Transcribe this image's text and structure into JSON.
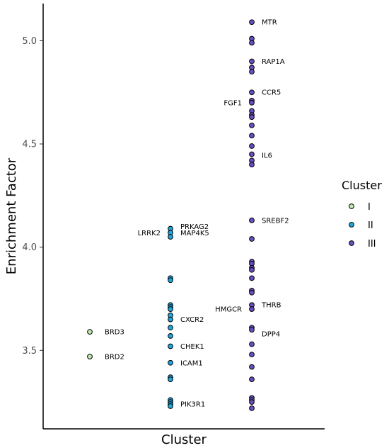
{
  "chart_data": {
    "type": "scatter",
    "xlabel": "Cluster",
    "ylabel": "Enrichment Factor",
    "ylim": [
      3.12,
      5.18
    ],
    "yticks": [
      "3.5",
      "4.0",
      "4.5",
      "5.0"
    ],
    "grid": false,
    "legend_position": "right",
    "legend": {
      "title": "Cluster",
      "entries": [
        {
          "label": "I",
          "color": "#c2e8b0"
        },
        {
          "label": "II",
          "color": "#1ea6df"
        },
        {
          "label": "III",
          "color": "#6a4fc1"
        }
      ]
    },
    "series": [
      {
        "name": "I",
        "color": "#c2e8b0",
        "x": 1,
        "y": [
          3.59,
          3.47
        ]
      },
      {
        "name": "II",
        "color": "#1ea6df",
        "x": 2,
        "y": [
          4.09,
          4.07,
          4.05,
          3.85,
          3.84,
          3.72,
          3.71,
          3.7,
          3.67,
          3.65,
          3.61,
          3.57,
          3.52,
          3.44,
          3.37,
          3.36,
          3.26,
          3.25,
          3.24,
          3.23
        ]
      },
      {
        "name": "III",
        "color": "#6a4fc1",
        "x": 3,
        "y": [
          5.09,
          5.01,
          4.99,
          4.9,
          4.87,
          4.85,
          4.75,
          4.71,
          4.7,
          4.66,
          4.64,
          4.63,
          4.59,
          4.54,
          4.49,
          4.45,
          4.42,
          4.4,
          4.13,
          4.04,
          3.93,
          3.92,
          3.9,
          3.89,
          3.85,
          3.79,
          3.78,
          3.72,
          3.7,
          3.61,
          3.6,
          3.53,
          3.48,
          3.42,
          3.36,
          3.27,
          3.26,
          3.25,
          3.22
        ]
      }
    ],
    "annotations": [
      {
        "text": "BRD3",
        "x": 1,
        "y": 3.59,
        "side": "right"
      },
      {
        "text": "BRD2",
        "x": 1,
        "y": 3.47,
        "side": "right"
      },
      {
        "text": "PRKAG2",
        "x": 2,
        "y": 4.1,
        "side": "right"
      },
      {
        "text": "MAP4K5",
        "x": 2,
        "y": 4.07,
        "side": "right"
      },
      {
        "text": "LRRK2",
        "x": 2,
        "y": 4.07,
        "side": "left"
      },
      {
        "text": "CXCR2",
        "x": 2,
        "y": 3.65,
        "side": "right"
      },
      {
        "text": "CHEK1",
        "x": 2,
        "y": 3.52,
        "side": "right"
      },
      {
        "text": "ICAM1",
        "x": 2,
        "y": 3.44,
        "side": "right"
      },
      {
        "text": "PIK3R1",
        "x": 2,
        "y": 3.24,
        "side": "right"
      },
      {
        "text": "MTR",
        "x": 3,
        "y": 5.09,
        "side": "right"
      },
      {
        "text": "RAP1A",
        "x": 3,
        "y": 4.9,
        "side": "right"
      },
      {
        "text": "CCR5",
        "x": 3,
        "y": 4.75,
        "side": "right"
      },
      {
        "text": "FGF1",
        "x": 3,
        "y": 4.7,
        "side": "left"
      },
      {
        "text": "IL6",
        "x": 3,
        "y": 4.445,
        "side": "right"
      },
      {
        "text": "SREBF2",
        "x": 3,
        "y": 4.13,
        "side": "right"
      },
      {
        "text": "THRB",
        "x": 3,
        "y": 3.72,
        "side": "right"
      },
      {
        "text": "HMGCR",
        "x": 3,
        "y": 3.7,
        "side": "left"
      },
      {
        "text": "DPP4",
        "x": 3,
        "y": 3.58,
        "side": "right"
      }
    ]
  }
}
